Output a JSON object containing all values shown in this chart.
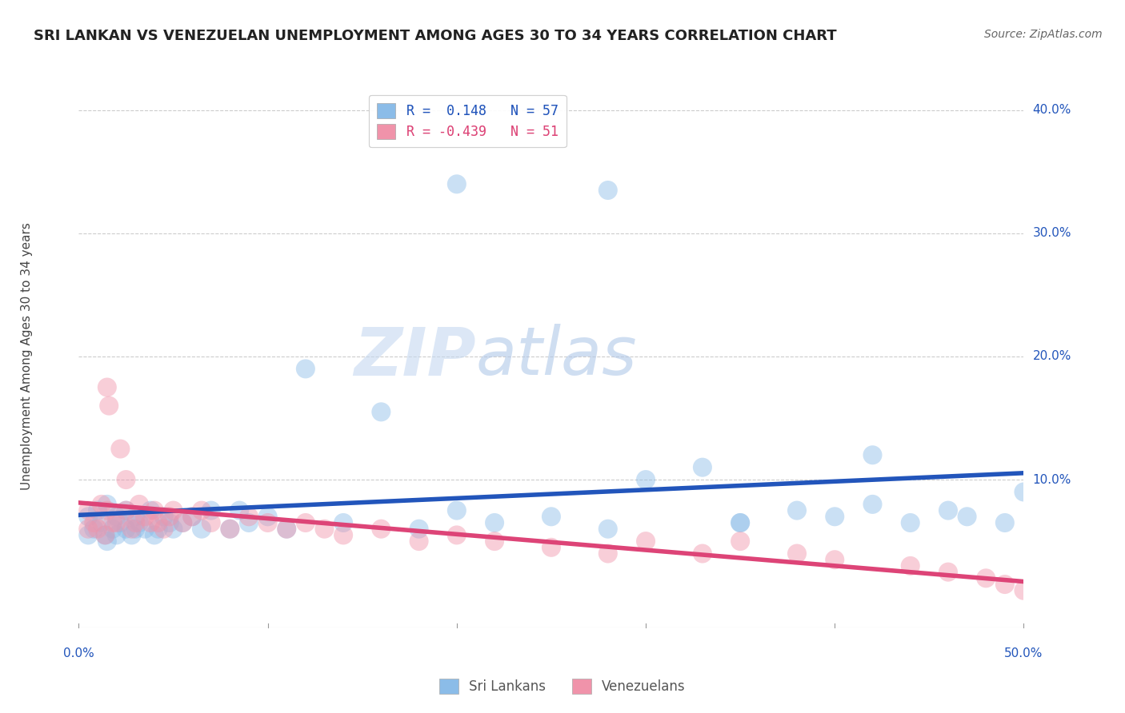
{
  "title": "SRI LANKAN VS VENEZUELAN UNEMPLOYMENT AMONG AGES 30 TO 34 YEARS CORRELATION CHART",
  "source": "Source: ZipAtlas.com",
  "ylabel": "Unemployment Among Ages 30 to 34 years",
  "ytick_values": [
    0.1,
    0.2,
    0.3,
    0.4
  ],
  "ytick_labels": [
    "10.0%",
    "20.0%",
    "30.0%",
    "40.0%"
  ],
  "xlim": [
    0.0,
    0.5
  ],
  "ylim": [
    -0.02,
    0.42
  ],
  "legend_entries": [
    {
      "label": "R =  0.148   N = 57",
      "color": "#a8c4e0"
    },
    {
      "label": "R = -0.439   N = 51",
      "color": "#f4a8b8"
    }
  ],
  "legend_bottom": [
    "Sri Lankans",
    "Venezuelans"
  ],
  "sri_lanka_color": "#8bbce8",
  "venezuela_color": "#f093aa",
  "sri_lanka_line_color": "#2255bb",
  "venezuela_line_color": "#dd4477",
  "background_color": "#ffffff",
  "watermark_zip": "ZIP",
  "watermark_atlas": "atlas",
  "sri_lanka_scatter_x": [
    0.005,
    0.005,
    0.008,
    0.01,
    0.012,
    0.014,
    0.015,
    0.015,
    0.018,
    0.02,
    0.02,
    0.022,
    0.025,
    0.025,
    0.028,
    0.03,
    0.03,
    0.032,
    0.035,
    0.038,
    0.04,
    0.042,
    0.045,
    0.048,
    0.05,
    0.055,
    0.06,
    0.065,
    0.07,
    0.08,
    0.085,
    0.09,
    0.1,
    0.11,
    0.12,
    0.14,
    0.16,
    0.18,
    0.2,
    0.22,
    0.25,
    0.28,
    0.3,
    0.33,
    0.35,
    0.38,
    0.4,
    0.42,
    0.44,
    0.46,
    0.2,
    0.28,
    0.35,
    0.42,
    0.47,
    0.49,
    0.5
  ],
  "sri_lanka_scatter_y": [
    0.055,
    0.07,
    0.06,
    0.075,
    0.065,
    0.055,
    0.08,
    0.05,
    0.06,
    0.07,
    0.055,
    0.065,
    0.06,
    0.075,
    0.055,
    0.06,
    0.07,
    0.065,
    0.06,
    0.075,
    0.055,
    0.06,
    0.07,
    0.065,
    0.06,
    0.065,
    0.07,
    0.06,
    0.075,
    0.06,
    0.075,
    0.065,
    0.07,
    0.06,
    0.19,
    0.065,
    0.155,
    0.06,
    0.075,
    0.065,
    0.07,
    0.06,
    0.1,
    0.11,
    0.065,
    0.075,
    0.07,
    0.12,
    0.065,
    0.075,
    0.34,
    0.335,
    0.065,
    0.08,
    0.07,
    0.065,
    0.09
  ],
  "venezuela_scatter_x": [
    0.005,
    0.005,
    0.008,
    0.01,
    0.012,
    0.014,
    0.015,
    0.016,
    0.018,
    0.02,
    0.022,
    0.025,
    0.028,
    0.03,
    0.032,
    0.035,
    0.038,
    0.04,
    0.042,
    0.045,
    0.048,
    0.05,
    0.055,
    0.06,
    0.065,
    0.07,
    0.08,
    0.09,
    0.1,
    0.11,
    0.12,
    0.13,
    0.14,
    0.16,
    0.18,
    0.2,
    0.22,
    0.25,
    0.28,
    0.3,
    0.33,
    0.35,
    0.38,
    0.4,
    0.44,
    0.46,
    0.48,
    0.49,
    0.5,
    0.015,
    0.025
  ],
  "venezuela_scatter_y": [
    0.06,
    0.075,
    0.065,
    0.06,
    0.08,
    0.055,
    0.075,
    0.16,
    0.065,
    0.065,
    0.125,
    0.075,
    0.06,
    0.065,
    0.08,
    0.07,
    0.065,
    0.075,
    0.065,
    0.06,
    0.07,
    0.075,
    0.065,
    0.07,
    0.075,
    0.065,
    0.06,
    0.07,
    0.065,
    0.06,
    0.065,
    0.06,
    0.055,
    0.06,
    0.05,
    0.055,
    0.05,
    0.045,
    0.04,
    0.05,
    0.04,
    0.05,
    0.04,
    0.035,
    0.03,
    0.025,
    0.02,
    0.015,
    0.01,
    0.175,
    0.1
  ]
}
